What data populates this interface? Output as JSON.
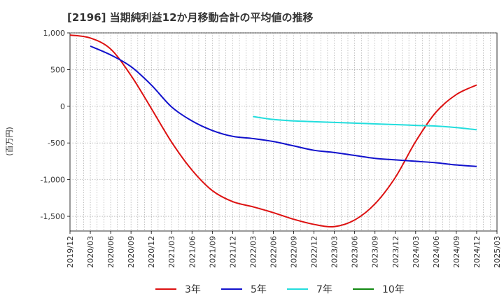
{
  "chart_data": {
    "type": "line",
    "title": "[2196]  当期純利益12か月移動合計の平均値の推移",
    "ylabel": "(百万円)",
    "xlabel": "",
    "ylim": [
      -1700,
      1000
    ],
    "yticks": [
      1000,
      500,
      0,
      -500,
      -1000,
      -1500
    ],
    "ytick_labels": [
      "1,000",
      "500",
      "0",
      "-500",
      "-1,000",
      "-1,500"
    ],
    "x_start": "2019/12",
    "x_end": "2025/03",
    "xtick_labels": [
      "2019/12",
      "2020/03",
      "2020/06",
      "2020/09",
      "2020/12",
      "2021/03",
      "2021/06",
      "2021/09",
      "2021/12",
      "2022/03",
      "2022/06",
      "2022/09",
      "2022/12",
      "2023/03",
      "2023/06",
      "2023/09",
      "2023/12",
      "2024/03",
      "2024/06",
      "2024/09",
      "2024/12",
      "2025/03"
    ],
    "grid": true,
    "legend_position": "bottom",
    "series": [
      {
        "name": "3年",
        "color": "#dd1111",
        "x": [
          "2019/12",
          "2020/03",
          "2020/06",
          "2020/09",
          "2020/12",
          "2021/03",
          "2021/06",
          "2021/09",
          "2021/12",
          "2022/03",
          "2022/06",
          "2022/09",
          "2022/12",
          "2023/03",
          "2023/06",
          "2023/09",
          "2023/12",
          "2024/03",
          "2024/06",
          "2024/09",
          "2024/12"
        ],
        "values": [
          970,
          930,
          780,
          420,
          -30,
          -490,
          -870,
          -1150,
          -1300,
          -1370,
          -1450,
          -1540,
          -1610,
          -1640,
          -1550,
          -1330,
          -970,
          -480,
          -80,
          160,
          290
        ]
      },
      {
        "name": "5年",
        "color": "#1111cc",
        "x": [
          "2020/03",
          "2020/06",
          "2020/09",
          "2020/12",
          "2021/03",
          "2021/06",
          "2021/09",
          "2021/12",
          "2022/03",
          "2022/06",
          "2022/09",
          "2022/12",
          "2023/03",
          "2023/06",
          "2023/09",
          "2023/12",
          "2024/03",
          "2024/06",
          "2024/09",
          "2024/12"
        ],
        "values": [
          820,
          700,
          540,
          290,
          -10,
          -200,
          -330,
          -410,
          -440,
          -480,
          -540,
          -600,
          -630,
          -670,
          -710,
          -730,
          -750,
          -770,
          -800,
          -820
        ]
      },
      {
        "name": "7年",
        "color": "#22dddd",
        "x": [
          "2022/03",
          "2022/06",
          "2022/09",
          "2022/12",
          "2023/03",
          "2023/06",
          "2023/09",
          "2023/12",
          "2024/03",
          "2024/06",
          "2024/09",
          "2024/12"
        ],
        "values": [
          -140,
          -180,
          -200,
          -210,
          -220,
          -230,
          -240,
          -250,
          -260,
          -270,
          -290,
          -320
        ]
      },
      {
        "name": "10年",
        "color": "#118811",
        "x": [],
        "values": []
      }
    ]
  }
}
